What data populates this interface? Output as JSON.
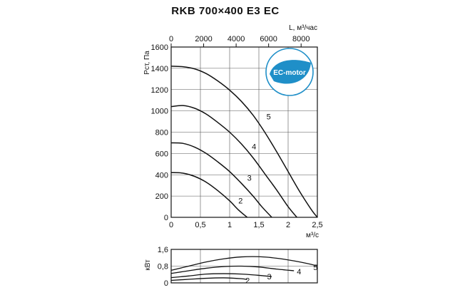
{
  "chart_data": {
    "title": "RKB 700×400 E3 EC",
    "badge": {
      "text": "EC-motor",
      "color": "#1f8fc8",
      "ring_color": "#1f8fc8"
    },
    "pressure_chart": {
      "type": "line",
      "ylabel": "Рст, Па",
      "xlabel": "м³/с",
      "top_xlabel": "L, м³/час",
      "xlim": [
        0,
        2.5
      ],
      "ylim": [
        0,
        1600
      ],
      "top_xlim": [
        0,
        9000
      ],
      "x_ticks": [
        0,
        0.5,
        1,
        1.5,
        2,
        2.5
      ],
      "x_tick_labels": [
        "0",
        "0,5",
        "1",
        "1,5",
        "2",
        "2,5"
      ],
      "y_ticks": [
        0,
        200,
        400,
        600,
        800,
        1000,
        1200,
        1400,
        1600
      ],
      "y_tick_labels": [
        "0",
        "200",
        "400",
        "600",
        "800",
        "1000",
        "1200",
        "1400",
        "1600"
      ],
      "top_x_ticks": [
        0,
        2000,
        4000,
        6000,
        8000
      ],
      "top_x_tick_labels": [
        "0",
        "2000",
        "4000",
        "6000",
        "8000"
      ],
      "grid": true,
      "series": [
        {
          "name": "2",
          "label_at": [
            1.15,
            130
          ],
          "x": [
            0,
            0.2,
            0.4,
            0.6,
            0.8,
            1.0,
            1.15,
            1.3
          ],
          "y": [
            420,
            415,
            385,
            330,
            250,
            155,
            70,
            0
          ]
        },
        {
          "name": "3",
          "label_at": [
            1.3,
            345
          ],
          "x": [
            0,
            0.2,
            0.4,
            0.6,
            0.8,
            1.0,
            1.2,
            1.4,
            1.55,
            1.72
          ],
          "y": [
            700,
            695,
            660,
            600,
            520,
            430,
            320,
            200,
            100,
            0
          ]
        },
        {
          "name": "4",
          "label_at": [
            1.38,
            640
          ],
          "x": [
            0,
            0.2,
            0.4,
            0.6,
            0.8,
            1.0,
            1.2,
            1.4,
            1.6,
            1.8,
            2.0,
            2.15
          ],
          "y": [
            1040,
            1050,
            1025,
            970,
            890,
            800,
            690,
            560,
            410,
            260,
            100,
            0
          ]
        },
        {
          "name": "5",
          "label_at": [
            1.63,
            920
          ],
          "x": [
            0,
            0.2,
            0.4,
            0.6,
            0.8,
            1.0,
            1.2,
            1.4,
            1.6,
            1.8,
            2.0,
            2.2,
            2.4,
            2.5
          ],
          "y": [
            1420,
            1415,
            1395,
            1350,
            1280,
            1195,
            1090,
            960,
            800,
            620,
            430,
            240,
            70,
            0
          ]
        }
      ]
    },
    "power_chart": {
      "type": "line",
      "ylabel": "кВт",
      "xlim": [
        0,
        2.5
      ],
      "ylim": [
        0,
        1.6
      ],
      "y_ticks": [
        0,
        0.8,
        1.6
      ],
      "y_tick_labels": [
        "0",
        "0,8",
        "1,6"
      ],
      "grid": true,
      "series": [
        {
          "name": "2",
          "label_at": [
            1.27,
            0.12
          ],
          "x": [
            0,
            0.3,
            0.6,
            0.9,
            1.2,
            1.3
          ],
          "y": [
            0.12,
            0.17,
            0.22,
            0.24,
            0.2,
            0.16
          ]
        },
        {
          "name": "3",
          "label_at": [
            1.64,
            0.3
          ],
          "x": [
            0,
            0.3,
            0.6,
            0.9,
            1.2,
            1.5,
            1.72
          ],
          "y": [
            0.25,
            0.33,
            0.42,
            0.44,
            0.42,
            0.36,
            0.3
          ]
        },
        {
          "name": "4",
          "label_at": [
            2.15,
            0.55
          ],
          "x": [
            0,
            0.3,
            0.6,
            0.9,
            1.2,
            1.5,
            1.8,
            2.1
          ],
          "y": [
            0.45,
            0.58,
            0.7,
            0.78,
            0.8,
            0.76,
            0.66,
            0.58
          ]
        },
        {
          "name": "5",
          "label_at": [
            2.43,
            0.75
          ],
          "x": [
            0,
            0.3,
            0.6,
            0.9,
            1.2,
            1.5,
            1.8,
            2.1,
            2.4,
            2.5
          ],
          "y": [
            0.6,
            0.8,
            1.0,
            1.15,
            1.24,
            1.25,
            1.18,
            1.05,
            0.88,
            0.8
          ]
        }
      ]
    }
  }
}
